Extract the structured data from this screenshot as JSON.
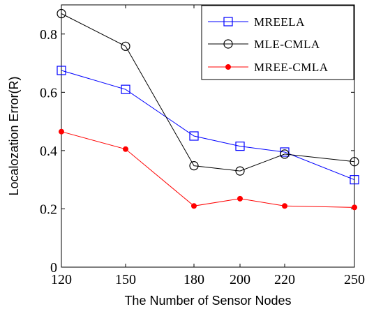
{
  "chart_data": {
    "type": "line",
    "x": [
      120,
      150,
      180,
      200,
      220,
      250
    ],
    "x_tick_labels": [
      "120",
      "150",
      "180",
      "200",
      "220",
      "250"
    ],
    "y_tick_labels": [
      "0",
      "0.2",
      "0.4",
      "0.6",
      "0.8"
    ],
    "y_ticks": [
      0,
      0.2,
      0.4,
      0.6,
      0.8
    ],
    "xlabel": "The Number of Sensor Nodes",
    "ylabel": "Localozation Error(R)",
    "ylim": [
      0,
      0.9
    ],
    "grid": false,
    "legend_position": "top-right",
    "series": [
      {
        "name": "MREELA",
        "color": "#0000ff",
        "marker": "square",
        "values": [
          0.675,
          0.61,
          0.45,
          0.415,
          0.395,
          0.3
        ]
      },
      {
        "name": "MLE-CMLA",
        "color": "#000000",
        "marker": "circle",
        "values": [
          0.87,
          0.758,
          0.348,
          0.33,
          0.388,
          0.362
        ]
      },
      {
        "name": "MREE-CMLA",
        "color": "#ff0000",
        "marker": "dot",
        "values": [
          0.465,
          0.405,
          0.21,
          0.235,
          0.21,
          0.205
        ]
      }
    ]
  }
}
